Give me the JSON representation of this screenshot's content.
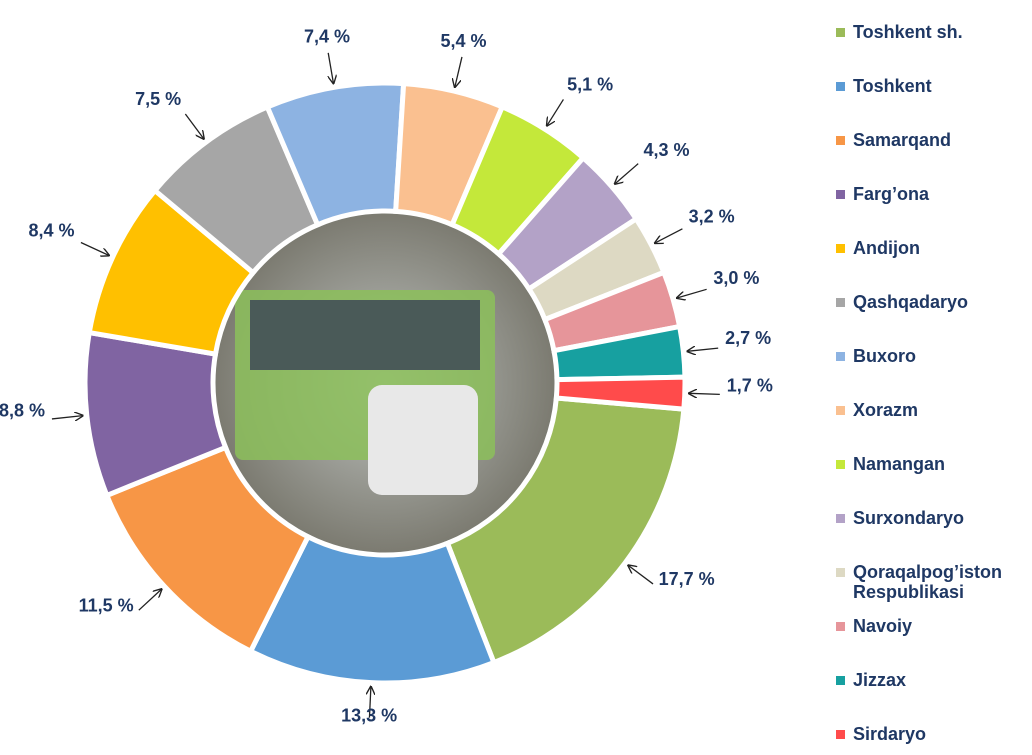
{
  "chart_data": {
    "type": "donut",
    "categories": [
      "Toshkent sh.",
      "Toshkent",
      "Samarqand",
      "Farg’ona",
      "Andijon",
      "Qashqadaryo",
      "Buxoro",
      "Xorazm",
      "Namangan",
      "Surxondaryo",
      "Qoraqalpog’iston Respublikasi",
      "Navoiy",
      "Jizzax",
      "Sirdaryo"
    ],
    "values": [
      17.7,
      13.3,
      11.5,
      8.8,
      8.4,
      7.5,
      7.4,
      5.4,
      5.1,
      4.3,
      3.2,
      3.0,
      2.7,
      1.7
    ],
    "value_labels": [
      "17,7 %",
      "13,3 %",
      "11,5 %",
      "8,8 %",
      "8,4 %",
      "7,5 %",
      "7,4 %",
      "5,4 %",
      "5,1 %",
      "4,3 %",
      "3,2 %",
      "3,0 %",
      "2,7 %",
      "1,7 %"
    ],
    "colors": [
      "#9bbb59",
      "#5b9bd5",
      "#f79646",
      "#8064a2",
      "#ffc000",
      "#a6a6a6",
      "#8db3e2",
      "#fac090",
      "#c4e83a",
      "#b3a2c7",
      "#ddd9c3",
      "#e6959a",
      "#17a0a0",
      "#ff4b4b"
    ]
  }
}
